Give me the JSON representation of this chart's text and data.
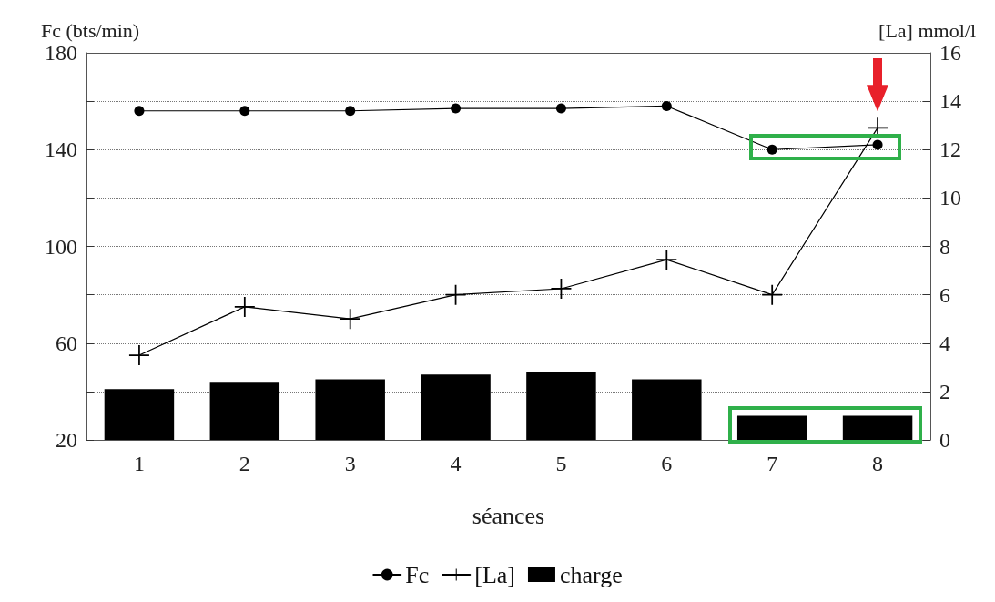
{
  "chart_data": {
    "type": "bar",
    "xlabel": "séances",
    "ylabel": "Fc (bts/min)",
    "y2label": "[La] mmol/l",
    "categories": [
      "1",
      "2",
      "3",
      "4",
      "5",
      "6",
      "7",
      "8"
    ],
    "series": [
      {
        "name": "Fc",
        "type": "line",
        "color": "#000000",
        "marker": "circle",
        "values": [
          156,
          156,
          156,
          157,
          157,
          158,
          140,
          142
        ]
      },
      {
        "name": "[La]",
        "type": "line",
        "axis": "y2",
        "color": "#000000",
        "marker": "cross",
        "values": [
          3.5,
          5.5,
          5.0,
          6.0,
          6.25,
          7.45,
          6.0,
          12.9
        ]
      },
      {
        "name": "charge",
        "axis": "y2",
        "color": "#000000",
        "values": [
          2.1,
          2.4,
          2.5,
          2.7,
          2.8,
          2.5,
          1.0,
          1.0
        ]
      }
    ],
    "ylim": [
      20,
      180
    ],
    "yticks": [
      20,
      {
        "value": 40,
        "label": null
      },
      60,
      {
        "value": 80,
        "label": null
      },
      100,
      {
        "value": 120,
        "label": null
      },
      140,
      {
        "value": 160,
        "label": null
      },
      180
    ],
    "y2lim": [
      0,
      16
    ],
    "y2ticks": [
      0,
      2,
      4,
      6,
      8,
      10,
      12,
      14,
      16
    ],
    "grid": "y",
    "legend": "bottom",
    "line_style": "solid"
  }
}
